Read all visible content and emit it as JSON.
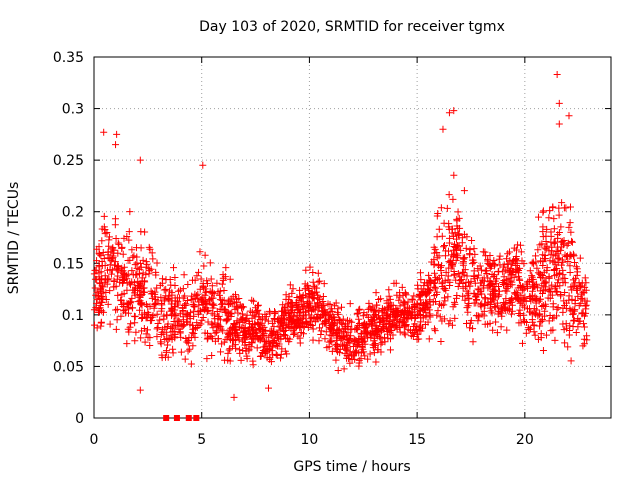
{
  "chart_data": {
    "type": "scatter",
    "title": "Day 103 of 2020, SRMTID for receiver tgmx",
    "xlabel": "GPS time / hours",
    "ylabel": "SRMTID / TECUs",
    "xlim": [
      0,
      24
    ],
    "ylim": [
      0,
      0.35
    ],
    "x_ticks": [
      0,
      5,
      10,
      15,
      20
    ],
    "x_tick_labels": [
      "0",
      "5",
      "10",
      "15",
      "20"
    ],
    "y_ticks": [
      0,
      0.05,
      0.1,
      0.15,
      0.2,
      0.25,
      0.3,
      0.35
    ],
    "y_tick_labels": [
      "0",
      "0.05",
      "0.1",
      "0.15",
      "0.2",
      "0.25",
      "0.3",
      "0.35"
    ],
    "grid": true,
    "marker": "plus",
    "color": "#ff0000",
    "zero_flags_x": [
      3.35,
      3.85,
      4.4,
      4.75
    ],
    "trend": [
      {
        "x": 0.0,
        "y": 0.11
      },
      {
        "x": 0.5,
        "y": 0.15
      },
      {
        "x": 1.0,
        "y": 0.145
      },
      {
        "x": 1.5,
        "y": 0.12
      },
      {
        "x": 2.0,
        "y": 0.135
      },
      {
        "x": 2.5,
        "y": 0.12
      },
      {
        "x": 3.0,
        "y": 0.1
      },
      {
        "x": 3.5,
        "y": 0.095
      },
      {
        "x": 4.0,
        "y": 0.1
      },
      {
        "x": 4.5,
        "y": 0.09
      },
      {
        "x": 5.0,
        "y": 0.11
      },
      {
        "x": 5.5,
        "y": 0.1
      },
      {
        "x": 6.0,
        "y": 0.1
      },
      {
        "x": 6.5,
        "y": 0.095
      },
      {
        "x": 7.0,
        "y": 0.085
      },
      {
        "x": 7.5,
        "y": 0.085
      },
      {
        "x": 8.0,
        "y": 0.075
      },
      {
        "x": 8.5,
        "y": 0.085
      },
      {
        "x": 9.0,
        "y": 0.095
      },
      {
        "x": 9.5,
        "y": 0.1
      },
      {
        "x": 10.0,
        "y": 0.11
      },
      {
        "x": 10.5,
        "y": 0.105
      },
      {
        "x": 11.0,
        "y": 0.085
      },
      {
        "x": 11.5,
        "y": 0.08
      },
      {
        "x": 12.0,
        "y": 0.075
      },
      {
        "x": 12.5,
        "y": 0.08
      },
      {
        "x": 13.0,
        "y": 0.085
      },
      {
        "x": 13.5,
        "y": 0.095
      },
      {
        "x": 14.0,
        "y": 0.1
      },
      {
        "x": 14.5,
        "y": 0.1
      },
      {
        "x": 15.0,
        "y": 0.1
      },
      {
        "x": 15.5,
        "y": 0.115
      },
      {
        "x": 16.0,
        "y": 0.14
      },
      {
        "x": 16.5,
        "y": 0.16
      },
      {
        "x": 17.0,
        "y": 0.155
      },
      {
        "x": 17.5,
        "y": 0.13
      },
      {
        "x": 18.0,
        "y": 0.125
      },
      {
        "x": 18.5,
        "y": 0.12
      },
      {
        "x": 19.0,
        "y": 0.125
      },
      {
        "x": 19.5,
        "y": 0.13
      },
      {
        "x": 20.0,
        "y": 0.11
      },
      {
        "x": 20.5,
        "y": 0.12
      },
      {
        "x": 21.0,
        "y": 0.135
      },
      {
        "x": 21.5,
        "y": 0.15
      },
      {
        "x": 22.0,
        "y": 0.14
      },
      {
        "x": 22.5,
        "y": 0.115
      },
      {
        "x": 22.9,
        "y": 0.11
      }
    ],
    "time_range_hours": [
      0,
      22.9
    ],
    "estimated_point_count": 2400,
    "notable_points": [
      {
        "x": 0.45,
        "y": 0.277
      },
      {
        "x": 1.05,
        "y": 0.275
      },
      {
        "x": 1.0,
        "y": 0.265
      },
      {
        "x": 2.15,
        "y": 0.25
      },
      {
        "x": 5.05,
        "y": 0.245
      },
      {
        "x": 2.15,
        "y": 0.027
      },
      {
        "x": 6.5,
        "y": 0.02
      },
      {
        "x": 8.1,
        "y": 0.029
      },
      {
        "x": 16.5,
        "y": 0.296
      },
      {
        "x": 16.7,
        "y": 0.298
      },
      {
        "x": 21.5,
        "y": 0.333
      },
      {
        "x": 21.6,
        "y": 0.305
      },
      {
        "x": 21.6,
        "y": 0.285
      },
      {
        "x": 22.05,
        "y": 0.293
      },
      {
        "x": 16.2,
        "y": 0.28
      }
    ]
  }
}
